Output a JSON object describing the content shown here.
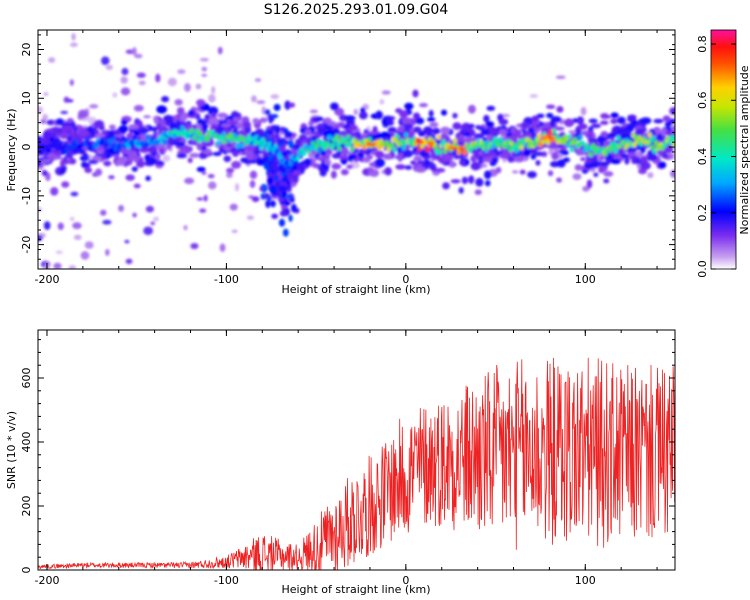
{
  "title": "S126.2025.293.01.09.G04",
  "chart_data": [
    {
      "type": "heatmap",
      "xlabel": "Height of straight line (km)",
      "ylabel": "Frequency (Hz)",
      "xlim": [
        -205,
        150
      ],
      "ylim": [
        -25,
        24
      ],
      "xticks": [
        -200,
        -100,
        0,
        100
      ],
      "yticks": [
        -20,
        -10,
        0,
        10,
        20
      ],
      "colorbar": {
        "label": "Normalized spectral amplitude",
        "range": [
          0,
          0.85
        ],
        "ticks": [
          "0.0",
          "0.2",
          "0.4",
          "0.6",
          "0.8"
        ]
      },
      "ridge": {
        "x": [
          -200,
          -180,
          -160,
          -140,
          -130,
          -120,
          -100,
          -85,
          -75,
          -65,
          -55,
          -40,
          -20,
          -10,
          0,
          10,
          20,
          30,
          40,
          50,
          60,
          70,
          80,
          90,
          100,
          110,
          120,
          130,
          140,
          150
        ],
        "freq_hz": [
          0.0,
          0.5,
          0.5,
          1.0,
          3.0,
          2.5,
          2.0,
          1.0,
          0.0,
          -4.0,
          0.0,
          1.0,
          0.5,
          0.5,
          1.0,
          1.0,
          0.5,
          -0.5,
          0.0,
          1.0,
          0.5,
          1.0,
          2.0,
          1.5,
          0.0,
          -1.0,
          0.5,
          1.5,
          0.5,
          1.5
        ],
        "peak_amplitude": [
          0.2,
          0.25,
          0.3,
          0.35,
          0.45,
          0.5,
          0.5,
          0.45,
          0.4,
          0.3,
          0.45,
          0.5,
          0.75,
          0.65,
          0.55,
          0.8,
          0.6,
          0.8,
          0.55,
          0.55,
          0.55,
          0.6,
          0.75,
          0.55,
          0.45,
          0.55,
          0.55,
          0.65,
          0.55,
          0.6
        ]
      }
    },
    {
      "type": "line",
      "xlabel": "Height of straight line (km)",
      "ylabel": "SNR (10 * v/v)",
      "xlim": [
        -205,
        150
      ],
      "ylim": [
        0,
        750
      ],
      "xticks": [
        -200,
        -100,
        0,
        100
      ],
      "yticks": [
        0,
        200,
        400,
        600
      ],
      "color": "#ee2222",
      "envelope": {
        "x": [
          -205,
          -180,
          -160,
          -140,
          -120,
          -100,
          -90,
          -80,
          -70,
          -60,
          -50,
          -40,
          -30,
          -20,
          -10,
          0,
          10,
          20,
          30,
          40,
          50,
          60,
          70,
          80,
          90,
          100,
          110,
          120,
          130,
          140,
          150
        ],
        "mean": [
          10,
          15,
          15,
          15,
          15,
          25,
          40,
          50,
          45,
          40,
          70,
          110,
          160,
          200,
          250,
          300,
          330,
          340,
          350,
          350,
          360,
          360,
          370,
          370,
          370,
          370,
          365,
          360,
          365,
          360,
          360
        ],
        "amplitude": [
          6,
          8,
          8,
          8,
          10,
          20,
          40,
          70,
          50,
          40,
          90,
          130,
          150,
          160,
          170,
          200,
          200,
          210,
          230,
          260,
          280,
          300,
          300,
          300,
          300,
          300,
          300,
          280,
          280,
          280,
          280
        ]
      }
    }
  ]
}
